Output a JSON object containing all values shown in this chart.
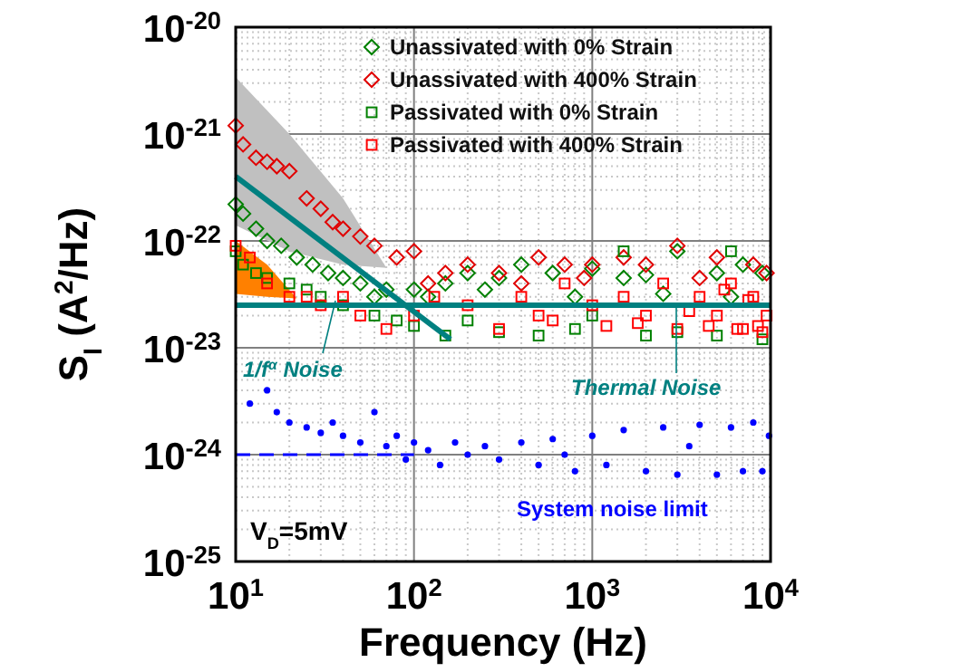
{
  "chart_data": {
    "type": "scatter",
    "xlabel": "Frequency (Hz)",
    "ylabel": "S$_{I}$ (A$^{2}$/Hz)",
    "log": "xy",
    "grid": true,
    "legend": "top right",
    "xlim": [
      10,
      10000
    ],
    "ylim": [
      1e-25,
      1e-20
    ],
    "xticks": [
      {
        "value": 10,
        "label": "10$^{1}$"
      },
      {
        "value": 100,
        "label": "10$^{2}$"
      },
      {
        "value": 1000,
        "label": "10$^{3}$"
      },
      {
        "value": 10000,
        "label": "10$^{4}$"
      }
    ],
    "yticks": [
      {
        "value": 1e-25,
        "label": "10$^{-25}$"
      },
      {
        "value": 1e-24,
        "label": "10$^{-24}$"
      },
      {
        "value": 1e-23,
        "label": "10$^{-23}$"
      },
      {
        "value": 1e-22,
        "label": "10$^{-22}$"
      },
      {
        "value": 1e-21,
        "label": "10$^{-21}$"
      },
      {
        "value": 1e-20,
        "label": "10$^{-20}$"
      }
    ],
    "annotations": [
      "1/f$^{α}$ Noise",
      "Thermal Noise",
      "System noise limit",
      "V$_{D}$=5mV"
    ],
    "series": [
      {
        "type": "area",
        "color": "#c0c0c0",
        "x": [
          10,
          20,
          40,
          70
        ],
        "values": [
          null,
          null,
          null,
          null
        ],
        "upper": [
          3.4e-21,
          1e-21,
          2.5e-22,
          5.6e-23
        ],
        "lower": [
          1.4e-22,
          8e-23,
          6e-23,
          5.6e-23
        ]
      },
      {
        "type": "area",
        "color": "#ff8000",
        "x": [
          10,
          15,
          22
        ],
        "values": [
          null,
          null,
          null
        ],
        "upper": [
          1e-22,
          6e-23,
          2.9e-23
        ],
        "lower": [
          3.2e-23,
          3e-23,
          2.9e-23
        ]
      },
      {
        "name": "Unassivated with 0% Strain",
        "color": "#008000",
        "marker": "diamond",
        "x": [
          10,
          11,
          13,
          15,
          18,
          22,
          27,
          33,
          40,
          50,
          70,
          100,
          150,
          200,
          300,
          400,
          600,
          1000,
          1500,
          2000,
          3000,
          5000,
          7000,
          9000,
          60,
          120,
          250,
          800,
          2500,
          6000
        ],
        "values": [
          2.2e-22,
          1.8e-22,
          1.3e-22,
          1e-22,
          9e-23,
          7e-23,
          6e-23,
          5e-23,
          4.5e-23,
          4e-23,
          3.5e-23,
          3.5e-23,
          4e-23,
          5e-23,
          4.5e-23,
          6e-23,
          5e-23,
          5.5e-23,
          4.5e-23,
          4.8e-23,
          8e-23,
          5e-23,
          6e-23,
          5e-23,
          3e-23,
          3e-23,
          3.5e-23,
          3e-23,
          3.2e-23,
          3e-23
        ]
      },
      {
        "name": "Unassivated with 400% Strain",
        "color": "#e00000",
        "marker": "diamond",
        "x": [
          10,
          11,
          13,
          15,
          17,
          20,
          25,
          30,
          35,
          40,
          50,
          60,
          80,
          100,
          150,
          200,
          300,
          500,
          700,
          1000,
          1500,
          2000,
          3000,
          5000,
          8000,
          120,
          400,
          900,
          4000,
          9500
        ],
        "values": [
          1.2e-21,
          8e-22,
          6e-22,
          5.5e-22,
          5e-22,
          4.5e-22,
          2.5e-22,
          2e-22,
          1.5e-22,
          1.3e-22,
          1.1e-22,
          9e-23,
          7e-23,
          8e-23,
          5e-23,
          6e-23,
          5e-23,
          7e-23,
          6e-23,
          6e-23,
          7e-23,
          6e-23,
          9e-23,
          7e-23,
          6e-23,
          4e-23,
          4e-23,
          4.5e-23,
          4.5e-23,
          5e-23
        ]
      },
      {
        "name": "Passivated with 0% Strain",
        "color": "#008000",
        "marker": "square",
        "x": [
          10,
          11,
          13,
          15,
          20,
          25,
          30,
          40,
          60,
          80,
          100,
          150,
          200,
          300,
          500,
          800,
          1000,
          1500,
          2000,
          3000,
          5000,
          6000,
          9000
        ],
        "values": [
          8e-23,
          6e-23,
          5e-23,
          4.5e-23,
          4e-23,
          3.5e-23,
          3e-23,
          2.5e-23,
          2e-23,
          1.8e-23,
          1.6e-23,
          1.3e-23,
          1.8e-23,
          1.4e-23,
          1.3e-23,
          1.5e-23,
          2e-23,
          8e-23,
          1.3e-23,
          1.4e-23,
          1.3e-23,
          8e-23,
          1.2e-23
        ]
      },
      {
        "name": "Passivated with 400% Strain",
        "color": "#ff0000",
        "marker": "square",
        "x": [
          10,
          12,
          15,
          20,
          25,
          30,
          40,
          50,
          70,
          100,
          130,
          200,
          300,
          400,
          500,
          700,
          1000,
          1200,
          1500,
          2000,
          2500,
          3000,
          4000,
          5000,
          6000,
          7000,
          8000,
          9500,
          600,
          1800,
          3500,
          4500,
          5500,
          6500,
          7500,
          8500,
          9000
        ],
        "values": [
          9e-23,
          7e-23,
          4e-23,
          3e-23,
          3e-23,
          2.5e-23,
          3e-23,
          2e-23,
          1.5e-23,
          2e-23,
          3e-23,
          2.5e-23,
          1.5e-23,
          3e-23,
          2e-23,
          4e-23,
          2.5e-23,
          1.6e-23,
          3e-23,
          2e-23,
          4e-23,
          1.5e-23,
          3e-23,
          2e-23,
          4e-23,
          1.5e-23,
          3e-23,
          2e-23,
          1.8e-23,
          1.7e-23,
          2.2e-23,
          1.6e-23,
          3.5e-23,
          1.5e-23,
          2.8e-23,
          1.6e-23,
          1.4e-23
        ]
      },
      {
        "color": "#0000ff",
        "marker": "circle",
        "x": [
          12,
          15,
          17,
          20,
          25,
          30,
          35,
          40,
          50,
          60,
          70,
          80,
          90,
          100,
          120,
          140,
          170,
          200,
          250,
          300,
          400,
          500,
          600,
          700,
          800,
          1000,
          1200,
          1500,
          2000,
          2500,
          3000,
          3500,
          4000,
          5000,
          6000,
          7000,
          8000,
          9000,
          9800
        ],
        "values": [
          3e-24,
          4e-24,
          2.5e-24,
          2e-24,
          1.8e-24,
          1.6e-24,
          2e-24,
          1.5e-24,
          1.3e-24,
          2.5e-24,
          1.2e-24,
          1.5e-24,
          9e-25,
          1.3e-24,
          1.1e-24,
          8e-25,
          1.3e-24,
          1e-24,
          1.2e-24,
          9e-25,
          1.3e-24,
          8e-25,
          1.4e-24,
          1e-24,
          7e-25,
          1.5e-24,
          8e-25,
          1.7e-24,
          7e-25,
          1.8e-24,
          6.5e-25,
          1.2e-24,
          1.9e-24,
          6.5e-25,
          1.8e-24,
          7e-25,
          2e-24,
          7e-25,
          1.5e-24
        ]
      },
      {
        "type": "line",
        "color": "#0000ff",
        "line_style": "dashed",
        "x": [
          10,
          100
        ],
        "values": [
          1e-24,
          1e-24
        ]
      },
      {
        "type": "line",
        "color": "#008080",
        "line_style": "solid",
        "x": [
          10,
          160
        ],
        "values": [
          4e-22,
          1.2e-23
        ]
      },
      {
        "type": "line",
        "color": "#008080",
        "line_style": "solid",
        "x": [
          10,
          10000
        ],
        "values": [
          2.5e-23,
          2.5e-23
        ]
      }
    ]
  }
}
